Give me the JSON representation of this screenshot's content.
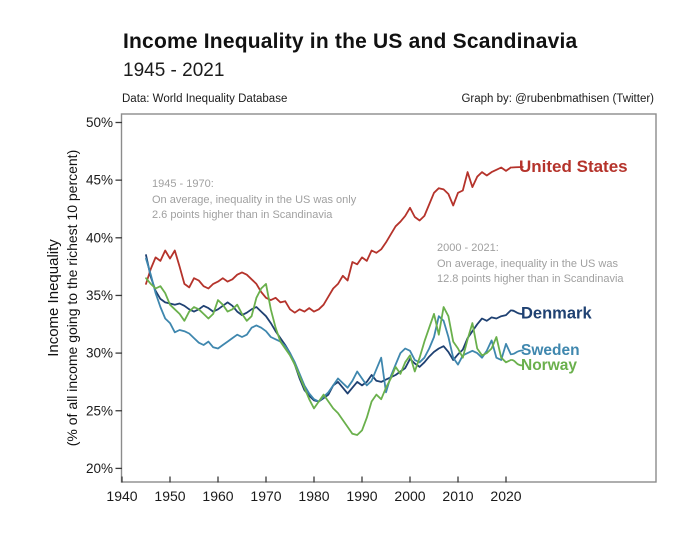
{
  "header": {
    "title": "Income Inequality in the US and Scandinavia",
    "subtitle": "1945 - 2021",
    "source_note": "Data: World Inequality Database",
    "credit_note": "Graph by: @rubenbmathisen (Twitter)"
  },
  "chart_data": {
    "type": "line",
    "title": "Income Inequality in the US and Scandinavia",
    "subtitle": "1945 - 2021",
    "ylabel_line1": "Income Inequality",
    "ylabel_line2": "(% of all income going to the richest 10 percent)",
    "xlabel": "",
    "grid": false,
    "legend_position": "direct-labels-right",
    "ylim": [
      20,
      50
    ],
    "xlim": [
      1940,
      2052
    ],
    "y_axis": {
      "tick_labels": [
        "50%",
        "45%",
        "40%",
        "35%",
        "30%",
        "25%",
        "20%"
      ],
      "tick_values": [
        50,
        45,
        40,
        35,
        30,
        25,
        20
      ]
    },
    "x_axis": {
      "tick_labels": [
        "1940",
        "1950",
        "1960",
        "1970",
        "1980",
        "1990",
        "2000",
        "2010",
        "2020"
      ],
      "tick_values": [
        1940,
        1950,
        1960,
        1970,
        1980,
        1990,
        2000,
        2010,
        2020
      ]
    },
    "years": [
      1945,
      1946,
      1947,
      1948,
      1949,
      1950,
      1951,
      1952,
      1953,
      1954,
      1955,
      1956,
      1957,
      1958,
      1959,
      1960,
      1961,
      1962,
      1963,
      1964,
      1965,
      1966,
      1967,
      1968,
      1969,
      1970,
      1971,
      1972,
      1973,
      1974,
      1975,
      1976,
      1977,
      1978,
      1979,
      1980,
      1981,
      1982,
      1983,
      1984,
      1985,
      1986,
      1987,
      1988,
      1989,
      1990,
      1991,
      1992,
      1993,
      1994,
      1995,
      1996,
      1997,
      1998,
      1999,
      2000,
      2001,
      2002,
      2003,
      2004,
      2005,
      2006,
      2007,
      2008,
      2009,
      2010,
      2011,
      2012,
      2013,
      2014,
      2015,
      2016,
      2017,
      2018,
      2019,
      2020,
      2021
    ],
    "series": [
      {
        "name": "United States",
        "color": "#b5332b",
        "values": [
          36.0,
          37.3,
          38.3,
          38.0,
          38.9,
          38.2,
          38.9,
          37.5,
          36.0,
          35.7,
          36.5,
          36.3,
          35.8,
          35.6,
          36.0,
          36.2,
          36.5,
          36.2,
          36.4,
          36.8,
          37.0,
          36.8,
          36.4,
          36.0,
          35.3,
          34.8,
          34.6,
          34.8,
          34.4,
          34.5,
          33.8,
          33.5,
          33.8,
          33.6,
          33.9,
          33.6,
          33.8,
          34.2,
          34.9,
          35.6,
          36.0,
          36.7,
          36.3,
          37.9,
          37.7,
          38.3,
          38.0,
          38.9,
          38.7,
          39.0,
          39.6,
          40.3,
          41.0,
          41.4,
          41.9,
          42.6,
          41.8,
          41.5,
          41.9,
          42.9,
          43.9,
          44.3,
          44.2,
          43.8,
          42.8,
          43.9,
          44.1,
          45.7,
          44.4,
          45.3,
          45.7,
          45.4,
          45.7,
          45.9,
          46.1,
          45.8,
          46.1
        ]
      },
      {
        "name": "Denmark",
        "color": "#1f4172",
        "values": [
          38.5,
          36.6,
          35.4,
          34.7,
          34.4,
          34.3,
          34.2,
          34.3,
          34.1,
          33.8,
          33.6,
          33.8,
          34.1,
          33.9,
          33.6,
          33.8,
          34.1,
          34.4,
          34.1,
          33.6,
          33.3,
          33.5,
          33.8,
          34.0,
          33.6,
          33.2,
          32.6,
          31.9,
          31.3,
          30.7,
          30.0,
          29.0,
          27.8,
          26.8,
          26.3,
          25.9,
          25.8,
          26.1,
          26.4,
          27.2,
          27.5,
          27.0,
          26.5,
          27.0,
          27.5,
          27.2,
          27.5,
          28.1,
          27.6,
          27.5,
          27.7,
          27.9,
          28.1,
          28.4,
          28.7,
          29.5,
          29.1,
          28.8,
          29.2,
          29.7,
          30.1,
          30.4,
          30.6,
          30.1,
          29.4,
          29.9,
          30.3,
          31.3,
          31.9,
          32.5,
          33.0,
          32.8,
          33.1,
          33.0,
          33.2,
          33.3,
          33.7
        ]
      },
      {
        "name": "Sweden",
        "color": "#3f87ae",
        "values": [
          38.2,
          36.8,
          35.2,
          34.0,
          33.0,
          32.6,
          31.8,
          32.0,
          31.9,
          31.7,
          31.3,
          30.9,
          30.7,
          31.0,
          30.5,
          30.4,
          30.7,
          31.0,
          31.3,
          31.6,
          31.4,
          31.6,
          32.2,
          32.4,
          32.2,
          31.9,
          31.4,
          31.2,
          31.0,
          30.6,
          30.0,
          29.2,
          28.2,
          27.2,
          26.5,
          26.0,
          25.8,
          26.2,
          26.6,
          27.2,
          27.8,
          27.4,
          27.0,
          27.6,
          28.4,
          27.8,
          27.2,
          27.6,
          28.6,
          29.6,
          26.6,
          28.0,
          29.0,
          30.0,
          30.4,
          30.2,
          29.4,
          29.2,
          29.6,
          30.4,
          31.4,
          33.2,
          32.8,
          31.4,
          29.6,
          29.0,
          29.8,
          30.0,
          30.2,
          30.0,
          29.6,
          30.2,
          31.1,
          29.6,
          29.4,
          30.8,
          29.9
        ]
      },
      {
        "name": "Norway",
        "color": "#6ab04c",
        "values": [
          36.5,
          36.0,
          35.6,
          35.8,
          35.2,
          34.2,
          33.8,
          33.4,
          32.8,
          33.6,
          34.0,
          33.8,
          33.4,
          33.0,
          33.4,
          34.6,
          34.2,
          33.6,
          33.8,
          34.2,
          33.4,
          32.8,
          33.2,
          34.8,
          35.6,
          36.0,
          33.8,
          32.2,
          31.0,
          30.4,
          29.8,
          29.0,
          28.0,
          27.0,
          26.0,
          25.2,
          25.8,
          26.4,
          25.8,
          25.2,
          24.8,
          24.2,
          23.6,
          23.0,
          22.9,
          23.3,
          24.4,
          25.8,
          26.4,
          26.0,
          27.0,
          27.8,
          28.8,
          28.2,
          29.2,
          29.8,
          28.4,
          29.6,
          31.0,
          32.2,
          33.4,
          31.6,
          34.0,
          33.2,
          31.0,
          30.4,
          29.6,
          31.2,
          32.6,
          30.4,
          29.8,
          30.0,
          30.4,
          31.4,
          29.6,
          29.2,
          29.4
        ]
      }
    ],
    "annotations": [
      {
        "lines": [
          "1945 - 1970:",
          "On average, inequality in the US was only",
          "2.6 points higher than in Scandinavia"
        ]
      },
      {
        "lines": [
          "2000 - 2021:",
          "On average, inequality in the US was",
          "12.8 points higher than in Scandinavia"
        ]
      }
    ],
    "colors": {
      "frame": "#8c8c8c",
      "tick": "#3a3a3a",
      "tick_label": "#1a1a1a",
      "annotation": "#a0a0a0"
    }
  }
}
